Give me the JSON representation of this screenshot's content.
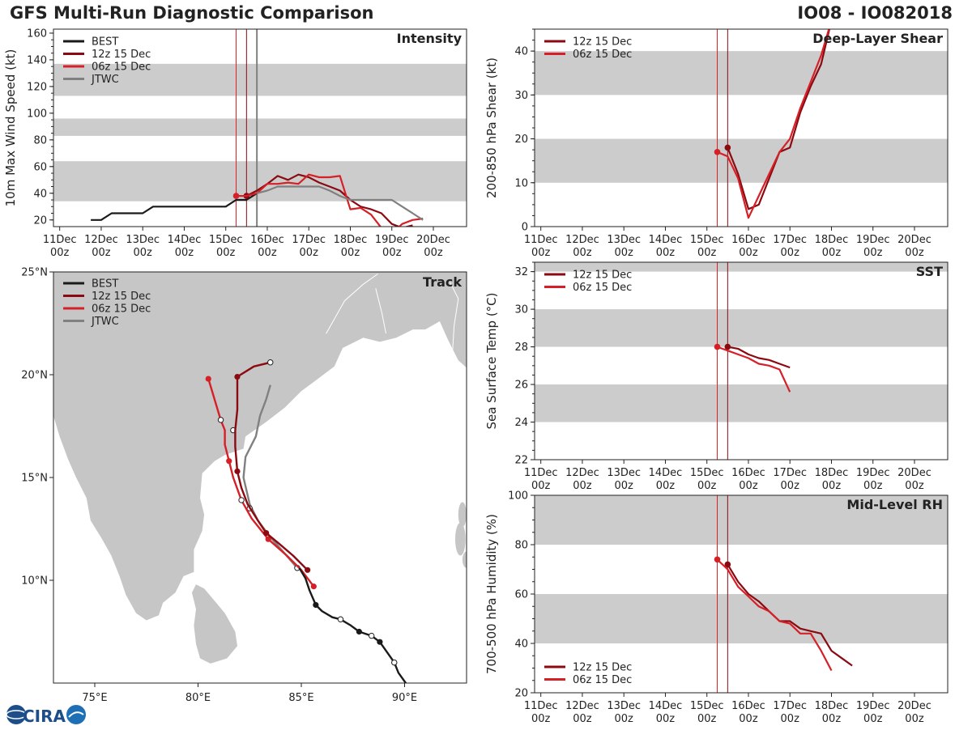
{
  "header": {
    "title_left": "GFS Multi-Run Diagnostic Comparison",
    "title_right": "IO08 - IO082018"
  },
  "logo": {
    "text": "CIRA"
  },
  "colors": {
    "best": "#1a1a1a",
    "run12": "#8b0a12",
    "run06": "#d62027",
    "jtwc": "#808080",
    "band": "#cccccc",
    "land": "#c6c6c6"
  },
  "chart_data": [
    {
      "id": "intensity",
      "type": "line",
      "title": "Intensity",
      "ylabel": "10m Max Wind Speed (kt)",
      "xticks": [
        "11Dec\n00z",
        "12Dec\n00z",
        "13Dec\n00z",
        "14Dec\n00z",
        "15Dec\n00z",
        "16Dec\n00z",
        "17Dec\n00z",
        "18Dec\n00z",
        "19Dec\n00z",
        "20Dec\n00z"
      ],
      "xlim": [
        -0.15,
        9.8
      ],
      "ylim": [
        15,
        163
      ],
      "yticks": [
        20,
        40,
        60,
        80,
        100,
        120,
        140,
        160
      ],
      "bands": [
        [
          34,
          64
        ],
        [
          83,
          96
        ],
        [
          113,
          137
        ]
      ],
      "vlines": [
        {
          "x": 4.25,
          "series": "06z 15 Dec"
        },
        {
          "x": 4.5,
          "series": "12z 15 Dec"
        },
        {
          "x": 4.75,
          "series": "JTWC"
        }
      ],
      "legend": [
        "BEST",
        "12z 15 Dec",
        "06z 15 Dec",
        "JTWC"
      ],
      "series": [
        {
          "name": "BEST",
          "key": "best",
          "x": [
            0.75,
            1,
            1.25,
            2,
            2.25,
            3,
            3.25,
            4,
            4.25,
            4.5,
            4.75
          ],
          "y": [
            20,
            20,
            25,
            25,
            30,
            30,
            30,
            30,
            35,
            35,
            40
          ]
        },
        {
          "name": "12z 15 Dec",
          "key": "run12",
          "x": [
            4.5,
            4.75,
            5,
            5.25,
            5.5,
            5.75,
            6,
            6.25,
            6.5,
            6.75,
            7,
            7.25,
            7.5,
            7.75,
            8,
            8.25,
            8.5
          ],
          "y": [
            38,
            42,
            47,
            53,
            50,
            54,
            52,
            48,
            45,
            42,
            35,
            30,
            28,
            25,
            17,
            14,
            16
          ],
          "marker_first": true
        },
        {
          "name": "06z 15 Dec",
          "key": "run06",
          "x": [
            4.25,
            4.5,
            4.75,
            5,
            5.25,
            5.5,
            5.75,
            6,
            6.25,
            6.5,
            6.75,
            7,
            7.25,
            7.5,
            7.75,
            8,
            8.25,
            8.5,
            8.75
          ],
          "y": [
            38,
            38,
            40,
            47,
            47,
            48,
            47,
            54,
            52,
            52,
            53,
            28,
            29,
            24,
            14,
            10,
            17,
            20,
            21
          ],
          "marker_first": true
        },
        {
          "name": "JTWC",
          "key": "jtwc",
          "x": [
            4.75,
            5,
            5.25,
            5.5,
            5.75,
            6,
            6.25,
            6.5,
            6.75,
            7,
            7.25,
            7.5,
            7.75,
            8,
            8.25,
            8.5,
            8.75
          ],
          "y": [
            40,
            42,
            45,
            45,
            45,
            45,
            45,
            42,
            38,
            35,
            35,
            35,
            35,
            35,
            30,
            25,
            20
          ]
        }
      ]
    },
    {
      "id": "shear",
      "type": "line",
      "title": "Deep-Layer Shear",
      "ylabel": "200-850 hPa Shear (kt)",
      "xticks": [
        "11Dec\n00z",
        "12Dec\n00z",
        "13Dec\n00z",
        "14Dec\n00z",
        "15Dec\n00z",
        "16Dec\n00z",
        "17Dec\n00z",
        "18Dec\n00z",
        "19Dec\n00z",
        "20Dec\n00z"
      ],
      "xlim": [
        -0.15,
        9.8
      ],
      "ylim": [
        0,
        45
      ],
      "yticks": [
        0,
        10,
        20,
        30,
        40
      ],
      "bands": [
        [
          10,
          20
        ],
        [
          30,
          40
        ]
      ],
      "vlines": [
        {
          "x": 4.25,
          "series": "06z 15 Dec"
        },
        {
          "x": 4.5,
          "series": "12z 15 Dec"
        }
      ],
      "legend": [
        "12z 15 Dec",
        "06z 15 Dec"
      ],
      "series": [
        {
          "name": "12z 15 Dec",
          "key": "run12",
          "x": [
            4.5,
            4.75,
            5,
            5.25,
            5.5,
            5.75,
            6,
            6.25,
            6.5,
            6.75,
            7,
            7.25
          ],
          "y": [
            18,
            12,
            4,
            5,
            11,
            17,
            18,
            26,
            32,
            37,
            47,
            50
          ],
          "marker_first": true
        },
        {
          "name": "06z 15 Dec",
          "key": "run06",
          "x": [
            4.25,
            4.5,
            4.75,
            5,
            5.25,
            5.5,
            5.75,
            6,
            6.25,
            6.5,
            6.75,
            7
          ],
          "y": [
            17,
            16,
            11,
            2,
            7,
            12,
            17,
            20,
            27,
            33,
            39,
            47
          ],
          "marker_first": true
        }
      ]
    },
    {
      "id": "sst",
      "type": "line",
      "title": "SST",
      "ylabel": "Sea Surface Temp (°C)",
      "xticks": [
        "11Dec\n00z",
        "12Dec\n00z",
        "13Dec\n00z",
        "14Dec\n00z",
        "15Dec\n00z",
        "16Dec\n00z",
        "17Dec\n00z",
        "18Dec\n00z",
        "19Dec\n00z",
        "20Dec\n00z"
      ],
      "xlim": [
        -0.15,
        9.8
      ],
      "ylim": [
        22,
        32.5
      ],
      "yticks": [
        22,
        24,
        26,
        28,
        30,
        32
      ],
      "bands": [
        [
          24,
          26
        ],
        [
          28,
          30
        ],
        [
          32,
          33
        ]
      ],
      "vlines": [
        {
          "x": 4.25,
          "series": "06z 15 Dec"
        },
        {
          "x": 4.5,
          "series": "12z 15 Dec"
        }
      ],
      "legend": [
        "12z 15 Dec",
        "06z 15 Dec"
      ],
      "series": [
        {
          "name": "12z 15 Dec",
          "key": "run12",
          "x": [
            4.5,
            4.75,
            5,
            5.25,
            5.5,
            5.75,
            6
          ],
          "y": [
            28,
            27.9,
            27.6,
            27.4,
            27.3,
            27.1,
            26.9
          ],
          "marker_first": true
        },
        {
          "name": "06z 15 Dec",
          "key": "run06",
          "x": [
            4.25,
            4.5,
            4.75,
            5,
            5.25,
            5.5,
            5.75,
            6
          ],
          "y": [
            28,
            27.8,
            27.6,
            27.4,
            27.1,
            27,
            26.8,
            25.6
          ],
          "marker_first": true
        }
      ]
    },
    {
      "id": "rh",
      "type": "line",
      "title": "Mid-Level RH",
      "ylabel": "700-500 hPa Humidity (%)",
      "xticks": [
        "11Dec\n00z",
        "12Dec\n00z",
        "13Dec\n00z",
        "14Dec\n00z",
        "15Dec\n00z",
        "16Dec\n00z",
        "17Dec\n00z",
        "18Dec\n00z",
        "19Dec\n00z",
        "20Dec\n00z"
      ],
      "xlim": [
        -0.15,
        9.8
      ],
      "ylim": [
        20,
        100
      ],
      "yticks": [
        20,
        40,
        60,
        80,
        100
      ],
      "bands": [
        [
          40,
          60
        ],
        [
          80,
          100
        ]
      ],
      "vlines": [
        {
          "x": 4.25,
          "series": "06z 15 Dec"
        },
        {
          "x": 4.5,
          "series": "12z 15 Dec"
        }
      ],
      "legend": [
        "12z 15 Dec",
        "06z 15 Dec"
      ],
      "series": [
        {
          "name": "12z 15 Dec",
          "key": "run12",
          "x": [
            4.5,
            4.75,
            5,
            5.25,
            5.5,
            5.75,
            6,
            6.25,
            6.5,
            6.75,
            7,
            7.25,
            7.5
          ],
          "y": [
            72,
            65,
            60,
            57,
            53,
            49,
            49,
            46,
            45,
            44,
            37,
            34,
            31
          ],
          "marker_first": true
        },
        {
          "name": "06z 15 Dec",
          "key": "run06",
          "x": [
            4.25,
            4.5,
            4.75,
            5,
            5.25,
            5.5,
            5.75,
            6,
            6.25,
            6.5,
            6.75,
            7
          ],
          "y": [
            74,
            70,
            63,
            59,
            55,
            53,
            49,
            48,
            44,
            44,
            37,
            29
          ],
          "marker_first": true
        }
      ]
    },
    {
      "id": "track",
      "type": "map",
      "title": "Track",
      "xticks": [
        "75°E",
        "80°E",
        "85°E",
        "90°E"
      ],
      "xtick_vals": [
        75,
        80,
        85,
        90
      ],
      "yticks": [
        "10°N",
        "15°N",
        "20°N",
        "25°N"
      ],
      "ytick_vals": [
        10,
        15,
        20,
        25
      ],
      "xlim": [
        73,
        93
      ],
      "ylim": [
        5,
        25
      ],
      "legend": [
        "BEST",
        "12z 15 Dec",
        "06z 15 Dec",
        "JTWC"
      ],
      "series": [
        {
          "name": "BEST",
          "key": "best",
          "lon": [
            90.2,
            89.7,
            89.5,
            88.8,
            88.4,
            87.8,
            87.4,
            86.9,
            86.5,
            86.0,
            85.7,
            85.4,
            85.2,
            84.9
          ],
          "lat": [
            4.8,
            5.5,
            6.0,
            7.0,
            7.3,
            7.5,
            7.8,
            8.1,
            8.2,
            8.5,
            8.8,
            9.5,
            10.1,
            10.6
          ],
          "filled": [
            [
              89.5,
              6.0
            ],
            [
              88.8,
              7.0
            ],
            [
              87.8,
              7.5
            ],
            [
              85.7,
              8.8
            ]
          ],
          "open": [
            [
              89.5,
              6.0
            ],
            [
              88.4,
              7.3
            ],
            [
              86.9,
              8.1
            ]
          ]
        },
        {
          "name": "12z 15 Dec",
          "key": "run12",
          "lon": [
            85.3,
            84.6,
            83.9,
            83.3,
            82.9,
            82.4,
            82.1,
            81.9,
            81.8,
            81.8,
            81.9,
            81.9,
            82.7,
            83.5
          ],
          "lat": [
            10.5,
            11.2,
            11.8,
            12.3,
            12.9,
            13.7,
            14.5,
            15.3,
            16.5,
            17.3,
            18.3,
            19.9,
            20.4,
            20.6
          ],
          "filled": [
            [
              85.3,
              10.5
            ],
            [
              83.3,
              12.3
            ],
            [
              81.9,
              15.3
            ],
            [
              81.9,
              19.9
            ]
          ],
          "open": [
            [
              83.5,
              20.6
            ]
          ]
        },
        {
          "name": "06z 15 Dec",
          "key": "run06",
          "lon": [
            85.6,
            85.0,
            84.3,
            83.4,
            82.6,
            82.1,
            81.7,
            81.5,
            81.3,
            81.3,
            81.1,
            80.8,
            80.5
          ],
          "lat": [
            9.7,
            10.5,
            11.2,
            12.0,
            13.0,
            13.9,
            15.0,
            15.8,
            16.6,
            17.3,
            17.8,
            18.8,
            19.8
          ],
          "filled": [
            [
              85.6,
              9.7
            ],
            [
              83.4,
              12.0
            ],
            [
              81.5,
              15.8
            ],
            [
              80.5,
              19.8
            ]
          ],
          "open": [
            [
              82.1,
              13.9
            ],
            [
              81.1,
              17.8
            ]
          ]
        },
        {
          "name": "JTWC",
          "key": "jtwc",
          "lon": [
            84.8,
            84.2,
            83.5,
            82.9,
            82.5,
            82.2,
            82.3,
            82.8,
            83.0,
            83.3,
            83.5
          ],
          "lat": [
            10.6,
            11.3,
            12.1,
            12.9,
            13.7,
            15.0,
            16.0,
            17.0,
            18.0,
            18.8,
            19.5
          ],
          "filled": [],
          "open": [
            [
              84.8,
              10.6
            ],
            [
              82.5,
              13.5
            ],
            [
              81.7,
              17.3
            ]
          ]
        }
      ]
    }
  ]
}
